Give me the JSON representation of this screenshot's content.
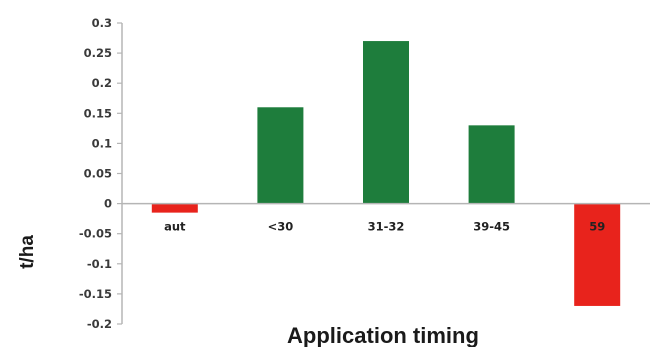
{
  "chart_data": {
    "type": "bar",
    "title": "",
    "xlabel": "Application timing",
    "ylabel": "t/ha",
    "categories": [
      "aut",
      "<30",
      "31-32",
      "39-45",
      "59"
    ],
    "values": [
      -0.015,
      0.16,
      0.27,
      0.13,
      -0.17
    ],
    "ylim": [
      -0.2,
      0.3
    ],
    "yticks": [
      "0.3",
      "0.25",
      "0.2",
      "0.15",
      "0.1",
      "0.05",
      "0",
      "-0.05",
      "-0.1",
      "-0.15",
      "-0.2"
    ],
    "grid": false,
    "legend": "none",
    "colors": {
      "positive": "#1e7d3c",
      "negative": "#e8231c",
      "axis": "#b5b5b5"
    }
  }
}
